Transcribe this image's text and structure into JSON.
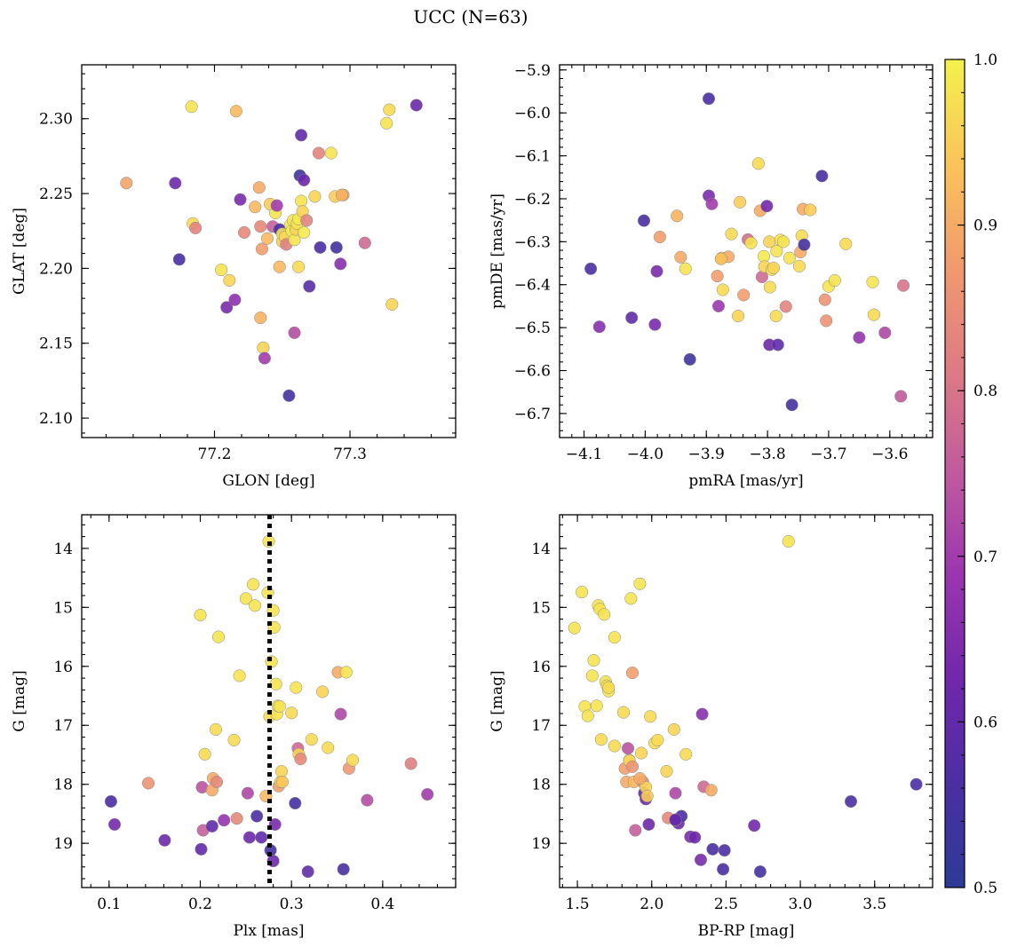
{
  "figure": {
    "title": "UCC (N=63)"
  },
  "colorbar": {
    "min": 0.5,
    "max": 1.0,
    "ticks": [
      "0.5",
      "0.6",
      "0.7",
      "0.8",
      "0.9",
      "1.0"
    ],
    "colormap": "plasma"
  },
  "chart_data": [
    {
      "type": "scatter",
      "xlabel": "GLON [deg]",
      "ylabel": "GLAT [deg]",
      "xlim": [
        77.102,
        77.378
      ],
      "ylim": [
        2.087,
        2.336
      ],
      "yinvert": false,
      "xticks": [
        77.2,
        77.3
      ],
      "xticklabels": [
        "77.2",
        "77.3"
      ],
      "yticks": [
        2.1,
        2.15,
        2.2,
        2.25,
        2.3
      ],
      "yticklabels": [
        "2.10",
        "2.15",
        "2.20",
        "2.25",
        "2.30"
      ],
      "x": [
        77.135,
        77.171,
        77.174,
        77.183,
        77.184,
        77.186,
        77.205,
        77.209,
        77.211,
        77.215,
        77.216,
        77.219,
        77.233,
        77.234,
        77.234,
        77.236,
        77.237,
        77.235,
        77.239,
        77.241,
        77.243,
        77.245,
        77.246,
        77.248,
        77.248,
        77.25,
        77.25,
        77.252,
        77.253,
        77.255,
        77.256,
        77.257,
        77.258,
        77.259,
        77.259,
        77.26,
        77.261,
        77.262,
        77.262,
        77.263,
        77.264,
        77.264,
        77.265,
        77.266,
        77.266,
        77.268,
        77.27,
        77.274,
        77.277,
        77.278,
        77.286,
        77.289,
        77.29,
        77.293,
        77.295,
        77.294,
        77.311,
        77.327,
        77.329,
        77.331,
        77.349,
        77.222,
        77.23
      ],
      "y": [
        2.257,
        2.257,
        2.206,
        2.308,
        2.23,
        2.227,
        2.199,
        2.174,
        2.192,
        2.179,
        2.305,
        2.246,
        2.254,
        2.228,
        2.167,
        2.147,
        2.14,
        2.213,
        2.22,
        2.243,
        2.228,
        2.237,
        2.242,
        2.226,
        2.201,
        2.218,
        2.223,
        2.221,
        2.216,
        2.115,
        2.229,
        2.225,
        2.232,
        2.157,
        2.219,
        2.226,
        2.23,
        2.233,
        2.201,
        2.262,
        2.289,
        2.245,
        2.238,
        2.224,
        2.259,
        2.232,
        2.188,
        2.248,
        2.277,
        2.214,
        2.277,
        2.248,
        2.214,
        2.203,
        2.249,
        2.249,
        2.217,
        2.297,
        2.306,
        2.176,
        2.309,
        2.224,
        2.241
      ],
      "c": [
        0.89,
        0.62,
        0.56,
        0.98,
        0.97,
        0.83,
        0.98,
        0.64,
        0.96,
        0.67,
        0.92,
        0.64,
        0.9,
        0.84,
        0.91,
        0.96,
        0.7,
        0.88,
        0.92,
        0.95,
        0.76,
        0.98,
        0.7,
        0.56,
        0.92,
        0.95,
        0.98,
        0.96,
        0.82,
        0.55,
        0.99,
        0.99,
        0.98,
        0.73,
        0.98,
        0.96,
        0.98,
        0.99,
        0.97,
        0.54,
        0.6,
        0.98,
        0.96,
        0.99,
        0.62,
        0.83,
        0.58,
        0.96,
        0.83,
        0.56,
        0.98,
        0.95,
        0.55,
        0.66,
        0.89,
        0.91,
        0.78,
        0.98,
        0.97,
        0.96,
        0.62,
        0.84,
        0.92
      ]
    },
    {
      "type": "scatter",
      "xlabel": "pmRA [mas/yr]",
      "ylabel": "pmDE [mas/yr]",
      "xlim": [
        -4.14,
        -3.53
      ],
      "ylim": [
        -6.756,
        -5.888
      ],
      "yinvert": false,
      "xticks": [
        -4.1,
        -4.0,
        -3.9,
        -3.8,
        -3.7,
        -3.6
      ],
      "xticklabels": [
        "−4.1",
        "−4.0",
        "−3.9",
        "−3.8",
        "−3.7",
        "−3.6"
      ],
      "yticks": [
        -6.7,
        -6.6,
        -6.5,
        -6.4,
        -6.3,
        -6.2,
        -6.1,
        -6.0,
        -5.9
      ],
      "yticklabels": [
        "−6.7",
        "−6.6",
        "−6.5",
        "−6.4",
        "−6.3",
        "−6.2",
        "−6.1",
        "−6.0",
        "−5.9"
      ],
      "x": [
        -4.089,
        -4.075,
        -4.022,
        -4.002,
        -3.984,
        -3.981,
        -3.976,
        -3.948,
        -3.942,
        -3.934,
        -3.927,
        -3.896,
        -3.896,
        -3.891,
        -3.875,
        -3.873,
        -3.864,
        -3.859,
        -3.848,
        -3.845,
        -3.839,
        -3.832,
        -3.827,
        -3.815,
        -3.812,
        -3.809,
        -3.806,
        -3.805,
        -3.801,
        -3.797,
        -3.796,
        -3.793,
        -3.79,
        -3.786,
        -3.785,
        -3.783,
        -3.779,
        -3.774,
        -3.77,
        -3.764,
        -3.748,
        -3.746,
        -3.744,
        -3.742,
        -3.74,
        -3.73,
        -3.711,
        -3.706,
        -3.704,
        -3.7,
        -3.69,
        -3.672,
        -3.65,
        -3.628,
        -3.626,
        -3.608,
        -3.582,
        -3.578,
        -3.88,
        -3.882,
        -3.76,
        -3.797,
        -3.876
      ],
      "y": [
        -6.363,
        -6.498,
        -6.477,
        -6.251,
        -6.493,
        -6.369,
        -6.289,
        -6.24,
        -6.336,
        -6.363,
        -6.574,
        -5.967,
        -6.193,
        -6.212,
        -6.338,
        -6.412,
        -6.335,
        -6.282,
        -6.473,
        -6.208,
        -6.424,
        -6.295,
        -6.303,
        -6.118,
        -6.228,
        -6.382,
        -6.334,
        -6.358,
        -6.217,
        -6.54,
        -6.406,
        -6.365,
        -6.361,
        -6.473,
        -6.322,
        -6.54,
        -6.296,
        -6.3,
        -6.451,
        -6.338,
        -6.357,
        -6.324,
        -6.286,
        -6.224,
        -6.307,
        -6.226,
        -6.147,
        -6.435,
        -6.484,
        -6.404,
        -6.39,
        -6.305,
        -6.523,
        -6.394,
        -6.47,
        -6.512,
        -6.66,
        -6.402,
        -6.45,
        -6.38,
        -6.68,
        -6.3,
        -6.34
      ],
      "c": [
        0.56,
        0.66,
        0.6,
        0.56,
        0.64,
        0.64,
        0.88,
        0.91,
        0.9,
        0.98,
        0.54,
        0.56,
        0.64,
        0.7,
        0.98,
        0.97,
        0.9,
        0.97,
        0.96,
        0.95,
        0.88,
        0.79,
        0.98,
        0.97,
        0.9,
        0.78,
        0.99,
        0.96,
        0.63,
        0.62,
        0.97,
        0.98,
        0.96,
        0.97,
        0.98,
        0.6,
        0.98,
        0.98,
        0.83,
        0.98,
        0.97,
        0.9,
        0.97,
        0.9,
        0.55,
        0.95,
        0.56,
        0.86,
        0.86,
        0.98,
        0.98,
        0.97,
        0.68,
        0.98,
        0.97,
        0.72,
        0.75,
        0.8,
        0.69,
        0.88,
        0.55,
        0.96,
        0.93
      ]
    },
    {
      "type": "scatter",
      "xlabel": "Plx [mas]",
      "ylabel": "G [mag]",
      "xlim": [
        0.07,
        0.48
      ],
      "ylim": [
        13.43,
        19.75
      ],
      "yinvert": true,
      "vline": {
        "x": 0.276,
        "style": "dotted",
        "color": "#000000"
      },
      "xticks": [
        0.1,
        0.2,
        0.3,
        0.4
      ],
      "xticklabels": [
        "0.1",
        "0.2",
        "0.3",
        "0.4"
      ],
      "yticks": [
        14,
        15,
        16,
        17,
        18,
        19
      ],
      "yticklabels": [
        "14",
        "15",
        "16",
        "17",
        "18",
        "19"
      ],
      "x": [
        0.102,
        0.106,
        0.143,
        0.161,
        0.2,
        0.201,
        0.202,
        0.203,
        0.205,
        0.213,
        0.213,
        0.214,
        0.217,
        0.218,
        0.22,
        0.226,
        0.237,
        0.24,
        0.243,
        0.25,
        0.252,
        0.254,
        0.258,
        0.26,
        0.262,
        0.267,
        0.272,
        0.274,
        0.275,
        0.276,
        0.277,
        0.278,
        0.28,
        0.281,
        0.282,
        0.283,
        0.284,
        0.285,
        0.286,
        0.287,
        0.288,
        0.289,
        0.29,
        0.3,
        0.304,
        0.305,
        0.307,
        0.308,
        0.31,
        0.318,
        0.322,
        0.334,
        0.34,
        0.351,
        0.354,
        0.357,
        0.36,
        0.363,
        0.367,
        0.383,
        0.431,
        0.449,
        0.28
      ],
      "y": [
        18.29,
        18.68,
        17.98,
        18.95,
        15.13,
        19.1,
        18.05,
        18.78,
        17.49,
        18.1,
        18.71,
        17.9,
        17.07,
        17.96,
        15.5,
        18.61,
        17.25,
        18.58,
        16.16,
        14.85,
        18.15,
        18.9,
        14.61,
        14.97,
        18.54,
        18.9,
        18.2,
        14.75,
        13.88,
        16.85,
        19.12,
        15.92,
        15.05,
        15.34,
        18.68,
        16.3,
        16.81,
        16.67,
        18.03,
        16.68,
        17.96,
        17.78,
        17.96,
        16.79,
        18.32,
        16.36,
        17.39,
        17.49,
        17.57,
        19.48,
        17.24,
        16.43,
        17.38,
        16.1,
        16.81,
        19.44,
        16.1,
        17.73,
        17.59,
        18.27,
        17.65,
        18.17,
        19.3
      ],
      "c": [
        0.56,
        0.63,
        0.86,
        0.62,
        0.98,
        0.6,
        0.74,
        0.76,
        0.97,
        0.9,
        0.6,
        0.9,
        0.97,
        0.84,
        0.98,
        0.68,
        0.97,
        0.84,
        0.98,
        0.98,
        0.72,
        0.62,
        0.98,
        0.98,
        0.56,
        0.6,
        0.92,
        0.98,
        0.98,
        0.97,
        0.55,
        0.98,
        0.98,
        0.98,
        0.64,
        0.98,
        0.98,
        0.97,
        0.88,
        0.98,
        0.96,
        0.96,
        0.94,
        0.97,
        0.55,
        0.98,
        0.78,
        0.96,
        0.84,
        0.6,
        0.97,
        0.96,
        0.97,
        0.9,
        0.72,
        0.56,
        0.98,
        0.87,
        0.97,
        0.73,
        0.82,
        0.7,
        0.62
      ]
    },
    {
      "type": "scatter",
      "xlabel": "BP-RP [mag]",
      "ylabel": "G [mag]",
      "xlim": [
        1.38,
        3.89
      ],
      "ylim": [
        13.43,
        19.75
      ],
      "yinvert": true,
      "xticks": [
        1.5,
        2.0,
        2.5,
        3.0,
        3.5
      ],
      "xticklabels": [
        "1.5",
        "2.0",
        "2.5",
        "3.0",
        "3.5"
      ],
      "yticks": [
        14,
        15,
        16,
        17,
        18,
        19
      ],
      "yticklabels": [
        "14",
        "15",
        "16",
        "17",
        "18",
        "19"
      ],
      "x": [
        1.48,
        1.53,
        1.55,
        1.57,
        1.6,
        1.61,
        1.63,
        1.64,
        1.65,
        1.66,
        1.68,
        1.69,
        1.7,
        1.71,
        1.71,
        1.75,
        1.75,
        1.81,
        1.82,
        1.83,
        1.84,
        1.85,
        1.85,
        1.86,
        1.87,
        1.88,
        1.89,
        1.92,
        1.93,
        1.94,
        1.95,
        1.96,
        1.96,
        1.97,
        1.98,
        1.99,
        2.02,
        2.04,
        2.1,
        2.11,
        2.15,
        2.16,
        2.18,
        2.2,
        2.23,
        2.26,
        2.29,
        2.33,
        2.34,
        2.35,
        2.4,
        2.41,
        2.48,
        2.49,
        2.69,
        2.73,
        2.92,
        3.34,
        3.78,
        2.16,
        1.92,
        1.87,
        2.16
      ],
      "y": [
        15.35,
        14.74,
        16.68,
        16.84,
        16.16,
        15.9,
        16.67,
        14.97,
        15.03,
        17.24,
        15.12,
        16.26,
        16.33,
        16.42,
        16.36,
        17.35,
        15.51,
        16.78,
        17.73,
        17.96,
        17.39,
        17.59,
        17.6,
        14.85,
        16.11,
        17.96,
        18.78,
        14.6,
        17.47,
        17.96,
        18.15,
        18.05,
        18.25,
        18.2,
        18.68,
        16.85,
        17.3,
        17.25,
        17.78,
        18.57,
        17.07,
        18.15,
        18.66,
        18.54,
        17.49,
        18.89,
        18.9,
        19.28,
        16.81,
        18.04,
        18.1,
        19.1,
        19.44,
        19.12,
        18.7,
        19.48,
        13.88,
        18.29,
        18.0,
        18.61,
        17.9,
        17.7,
        18.6
      ],
      "c": [
        0.98,
        0.98,
        0.98,
        0.98,
        0.98,
        0.98,
        0.98,
        0.98,
        0.98,
        0.97,
        0.98,
        0.98,
        0.97,
        0.98,
        0.97,
        0.97,
        0.98,
        0.97,
        0.88,
        0.9,
        0.74,
        0.95,
        0.96,
        0.98,
        0.88,
        0.92,
        0.76,
        0.98,
        0.96,
        0.84,
        0.6,
        0.96,
        0.62,
        0.95,
        0.62,
        0.97,
        0.97,
        0.97,
        0.96,
        0.84,
        0.96,
        0.72,
        0.62,
        0.56,
        0.97,
        0.64,
        0.62,
        0.64,
        0.66,
        0.78,
        0.9,
        0.56,
        0.56,
        0.56,
        0.63,
        0.55,
        0.98,
        0.56,
        0.56,
        0.65,
        0.9,
        0.86,
        0.6
      ]
    }
  ]
}
